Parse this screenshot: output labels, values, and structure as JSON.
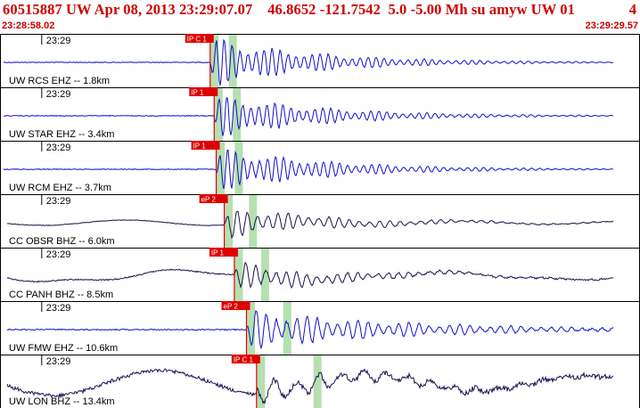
{
  "header": {
    "title": "60515887 UW Apr 08, 2013 23:29:07.07    46.8652 -121.7542  5.0 -5.00 Mh su amyw UW 01",
    "event_count": "4",
    "start_time": "23:28:58.02",
    "end_time": "23:29:29.57"
  },
  "colors": {
    "header_text": "#cc0000",
    "pick_flag": "#dd0000",
    "window_band": "#b5e0b0",
    "trace_blue": "#1010cc",
    "trace_dark": "#1c1050",
    "frame": "#000000"
  },
  "chart_data": {
    "type": "line",
    "time_start": "23:28:58.02",
    "time_end": "23:29:29.57",
    "tick_label": "23:29",
    "tick_time": "23:29:00.00",
    "series": [
      {
        "name": "UW RCS EHZ -- 1.8km",
        "pick": "IP C 1",
        "pick_time": "23:29:08.35",
        "color": "blue",
        "windows": [
          "23:29:08.55",
          "23:29:09.45"
        ],
        "peak_amp": 1.0,
        "noise": 0.03
      },
      {
        "name": "UW STAR EHZ -- 3.4km",
        "pick": "IP 1",
        "pick_time": "23:29:08.55",
        "color": "blue",
        "windows": [
          "23:29:08.75",
          "23:29:09.65"
        ],
        "peak_amp": 0.9,
        "noise": 0.03
      },
      {
        "name": "UW RCM EHZ -- 3.7km",
        "pick": "IP 1",
        "pick_time": "23:29:08.65",
        "color": "blue",
        "windows": [
          "23:29:08.85",
          "23:29:09.75"
        ],
        "peak_amp": 0.9,
        "noise": 0.03
      },
      {
        "name": "CC OBSR BHZ -- 6.0km",
        "pick": "eP 2",
        "pick_time": "23:29:09.05",
        "color": "dark",
        "windows": [
          "23:29:09.25",
          "23:29:10.45"
        ],
        "peak_amp": 0.6,
        "noise": 0.08
      },
      {
        "name": "CC PANH BHZ -- 8.5km",
        "pick": "IP 1",
        "pick_time": "23:29:09.55",
        "color": "dark",
        "windows": [
          "23:29:09.75",
          "23:29:11.05"
        ],
        "peak_amp": 0.55,
        "noise": 0.15
      },
      {
        "name": "UW FMW EHZ -- 10.6km",
        "pick": "eP 2",
        "pick_time": "23:29:10.15",
        "color": "blue",
        "windows": [
          "23:29:10.35",
          "23:29:12.15"
        ],
        "peak_amp": 0.8,
        "noise": 0.15
      },
      {
        "name": "UW LON BHZ -- 13.4km",
        "pick": "IP C 1",
        "pick_time": "23:29:10.65",
        "color": "dark",
        "windows": [
          "23:29:10.85",
          "23:29:13.65"
        ],
        "peak_amp": 0.5,
        "noise": 0.5
      }
    ]
  }
}
